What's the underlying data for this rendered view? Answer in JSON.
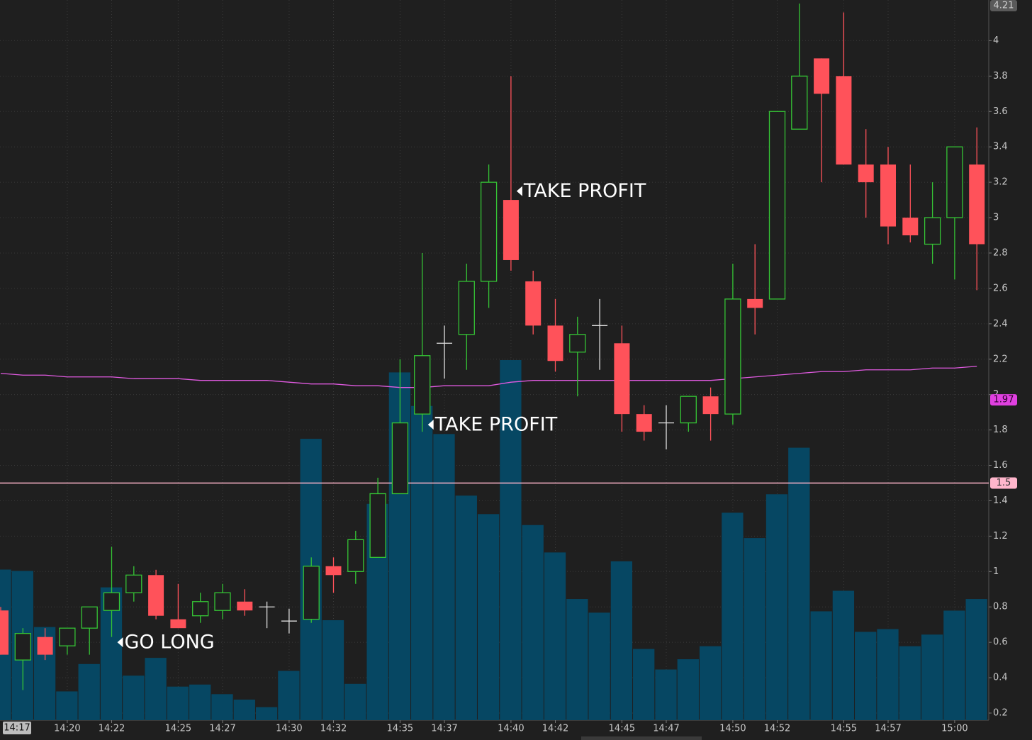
{
  "chart_data": {
    "type": "candlestick",
    "categories": [
      "14:17",
      null,
      null,
      "14:20",
      null,
      "14:22",
      null,
      null,
      "14:25",
      null,
      "14:27",
      null,
      null,
      "14:30",
      null,
      "14:32",
      null,
      null,
      "14:35",
      null,
      "14:37",
      null,
      null,
      "14:40",
      null,
      "14:42",
      null,
      null,
      "14:45",
      null,
      "14:47",
      null,
      null,
      "14:50",
      null,
      "14:52",
      null,
      null,
      "14:55",
      null,
      "14:57",
      null,
      null,
      "15:00",
      null
    ],
    "open": [
      0.78,
      0.5,
      0.63,
      0.58,
      0.68,
      0.78,
      0.88,
      0.98,
      0.73,
      0.75,
      0.78,
      0.83,
      0.8,
      0.72,
      0.73,
      1.03,
      1.0,
      1.08,
      1.44,
      1.89,
      2.29,
      2.34,
      2.64,
      3.1,
      2.64,
      2.39,
      2.24,
      2.39,
      2.29,
      1.89,
      1.84,
      1.84,
      1.99,
      1.89,
      2.54,
      2.54,
      3.5,
      3.9,
      3.8,
      3.3,
      3.3,
      3.0,
      2.85,
      3.0,
      3.3
    ],
    "high": [
      0.8,
      0.68,
      0.68,
      0.68,
      0.8,
      1.14,
      1.03,
      1.01,
      0.93,
      0.88,
      0.93,
      0.9,
      0.83,
      0.79,
      1.08,
      1.08,
      1.23,
      1.53,
      2.2,
      2.8,
      2.39,
      2.74,
      3.3,
      3.8,
      2.7,
      2.54,
      2.44,
      2.54,
      2.39,
      1.94,
      1.94,
      1.99,
      2.04,
      2.74,
      2.85,
      3.6,
      4.21,
      3.9,
      4.16,
      3.5,
      3.4,
      3.3,
      3.2,
      3.4,
      3.51
    ],
    "low": [
      0.53,
      0.33,
      0.5,
      0.53,
      0.53,
      0.63,
      0.83,
      0.73,
      0.68,
      0.71,
      0.73,
      0.75,
      0.68,
      0.65,
      0.71,
      0.88,
      0.93,
      1.08,
      1.44,
      1.79,
      2.09,
      2.14,
      2.49,
      2.7,
      2.34,
      2.13,
      1.99,
      2.14,
      1.79,
      1.74,
      1.69,
      1.79,
      1.74,
      1.83,
      2.34,
      2.54,
      3.5,
      3.2,
      3.3,
      3.0,
      2.85,
      2.86,
      2.74,
      2.65,
      2.59
    ],
    "close": [
      0.53,
      0.65,
      0.53,
      0.68,
      0.8,
      0.88,
      0.98,
      0.75,
      0.68,
      0.83,
      0.88,
      0.78,
      0.8,
      0.72,
      1.03,
      0.98,
      1.18,
      1.44,
      1.84,
      2.22,
      2.29,
      2.64,
      3.2,
      2.76,
      2.39,
      2.19,
      2.34,
      2.39,
      1.89,
      1.79,
      1.84,
      1.99,
      1.89,
      2.54,
      2.49,
      3.6,
      3.8,
      3.7,
      3.3,
      3.2,
      2.95,
      2.9,
      3.0,
      3.4,
      2.85
    ],
    "volume": [
      220,
      218,
      136,
      42,
      82,
      194,
      65,
      91,
      49,
      52,
      38,
      30,
      19,
      72,
      411,
      146,
      53,
      316,
      508,
      459,
      418,
      328,
      301,
      526,
      285,
      245,
      177,
      157,
      232,
      104,
      74,
      89,
      108,
      303,
      266,
      330,
      398,
      159,
      189,
      129,
      133,
      108,
      125,
      160,
      177
    ],
    "moving_average": [
      2.12,
      2.11,
      2.11,
      2.1,
      2.1,
      2.1,
      2.09,
      2.09,
      2.09,
      2.08,
      2.08,
      2.08,
      2.08,
      2.07,
      2.06,
      2.06,
      2.05,
      2.05,
      2.04,
      2.04,
      2.05,
      2.05,
      2.05,
      2.07,
      2.08,
      2.08,
      2.08,
      2.08,
      2.08,
      2.08,
      2.08,
      2.08,
      2.08,
      2.09,
      2.1,
      2.11,
      2.12,
      2.13,
      2.13,
      2.14,
      2.14,
      2.14,
      2.15,
      2.15,
      2.16
    ],
    "up_color": "#35c435",
    "down_color": "#ff525a",
    "doji_color": "#e0e0e0",
    "volume_color": "#064763",
    "ma_color": "#e05ae0",
    "ylim": [
      0.16,
      4.23
    ],
    "yticks": [
      0.2,
      0.4,
      0.6,
      0.8,
      1,
      1.2,
      1.4,
      1.6,
      1.8,
      2,
      2.2,
      2.4,
      2.6,
      2.8,
      3,
      3.2,
      3.4,
      3.6,
      3.8,
      4
    ],
    "price_markers": [
      {
        "value": 4.21,
        "color": "#5a5a5a",
        "text_color": "#d0d0d0"
      },
      {
        "value": 1.97,
        "color": "#e040e0",
        "text_color": "#2a002a"
      },
      {
        "value": 1.5,
        "color": "#ffb6cc",
        "text_color": "#333333",
        "line": true
      }
    ],
    "annotations": [
      {
        "text": "GO LONG",
        "index": 5,
        "value": 0.6
      },
      {
        "text": "TAKE PROFIT",
        "index": 19,
        "value": 1.83
      },
      {
        "text": "TAKE PROFIT",
        "index": 23,
        "value": 3.15
      }
    ],
    "grid": true
  }
}
